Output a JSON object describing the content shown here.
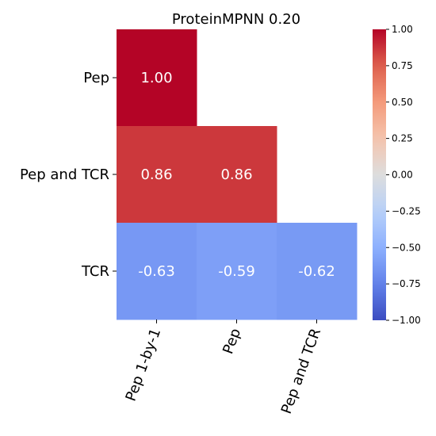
{
  "chart_data": {
    "type": "heatmap",
    "title": "ProteinMPNN 0.20",
    "rows": [
      "Pep",
      "Pep and TCR",
      "TCR"
    ],
    "columns": [
      "Pep 1-by-1",
      "Pep",
      "Pep and TCR"
    ],
    "values": [
      [
        1.0,
        null,
        null
      ],
      [
        0.86,
        0.86,
        null
      ],
      [
        -0.63,
        -0.59,
        -0.62
      ]
    ],
    "value_labels": [
      [
        "1.00",
        "",
        ""
      ],
      [
        "0.86",
        "0.86",
        ""
      ],
      [
        "-0.63",
        "-0.59",
        "-0.62"
      ]
    ],
    "mask": "upper-triangle",
    "colormap": "coolwarm",
    "vmin": -1.0,
    "vmax": 1.0,
    "colorbar": {
      "ticks": [
        1.0,
        0.75,
        0.5,
        0.25,
        0.0,
        -0.25,
        -0.5,
        -0.75,
        -1.0
      ],
      "tick_labels": [
        "1.00",
        "0.75",
        "0.50",
        "0.25",
        "0.00",
        "−0.25",
        "−0.50",
        "−0.75",
        "−1.00"
      ]
    },
    "column_label_rotation": "rotated ~70 degrees",
    "grid": false
  }
}
